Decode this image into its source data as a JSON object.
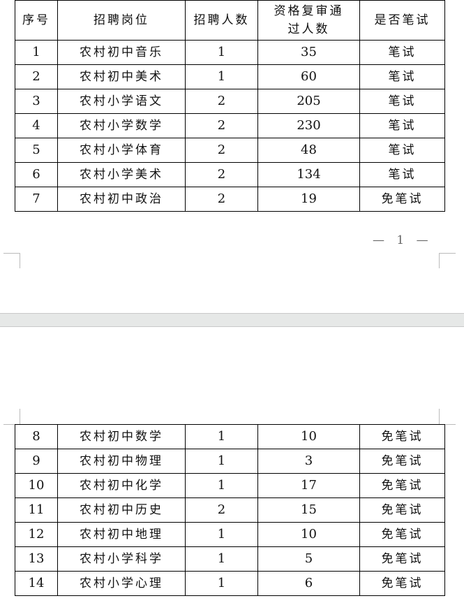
{
  "table": {
    "headers": [
      "序号",
      "招聘岗位",
      "招聘人数",
      "资格复审通过人数",
      "是否笔试"
    ],
    "rows_page1": [
      [
        "1",
        "农村初中音乐",
        "1",
        "35",
        "笔试"
      ],
      [
        "2",
        "农村初中美术",
        "1",
        "60",
        "笔试"
      ],
      [
        "3",
        "农村小学语文",
        "2",
        "205",
        "笔试"
      ],
      [
        "4",
        "农村小学数学",
        "2",
        "230",
        "笔试"
      ],
      [
        "5",
        "农村小学体育",
        "2",
        "48",
        "笔试"
      ],
      [
        "6",
        "农村小学美术",
        "2",
        "134",
        "笔试"
      ],
      [
        "7",
        "农村初中政治",
        "2",
        "19",
        "免笔试"
      ]
    ],
    "rows_page2": [
      [
        "8",
        "农村初中数学",
        "1",
        "10",
        "免笔试"
      ],
      [
        "9",
        "农村初中物理",
        "1",
        "3",
        "免笔试"
      ],
      [
        "10",
        "农村初中化学",
        "1",
        "17",
        "免笔试"
      ],
      [
        "11",
        "农村初中历史",
        "2",
        "15",
        "免笔试"
      ],
      [
        "12",
        "农村初中地理",
        "1",
        "10",
        "免笔试"
      ],
      [
        "13",
        "农村小学科学",
        "1",
        "5",
        "免笔试"
      ],
      [
        "14",
        "农村小学心理",
        "1",
        "6",
        "免笔试"
      ]
    ]
  },
  "footer": {
    "page_number": "— 1 —"
  }
}
